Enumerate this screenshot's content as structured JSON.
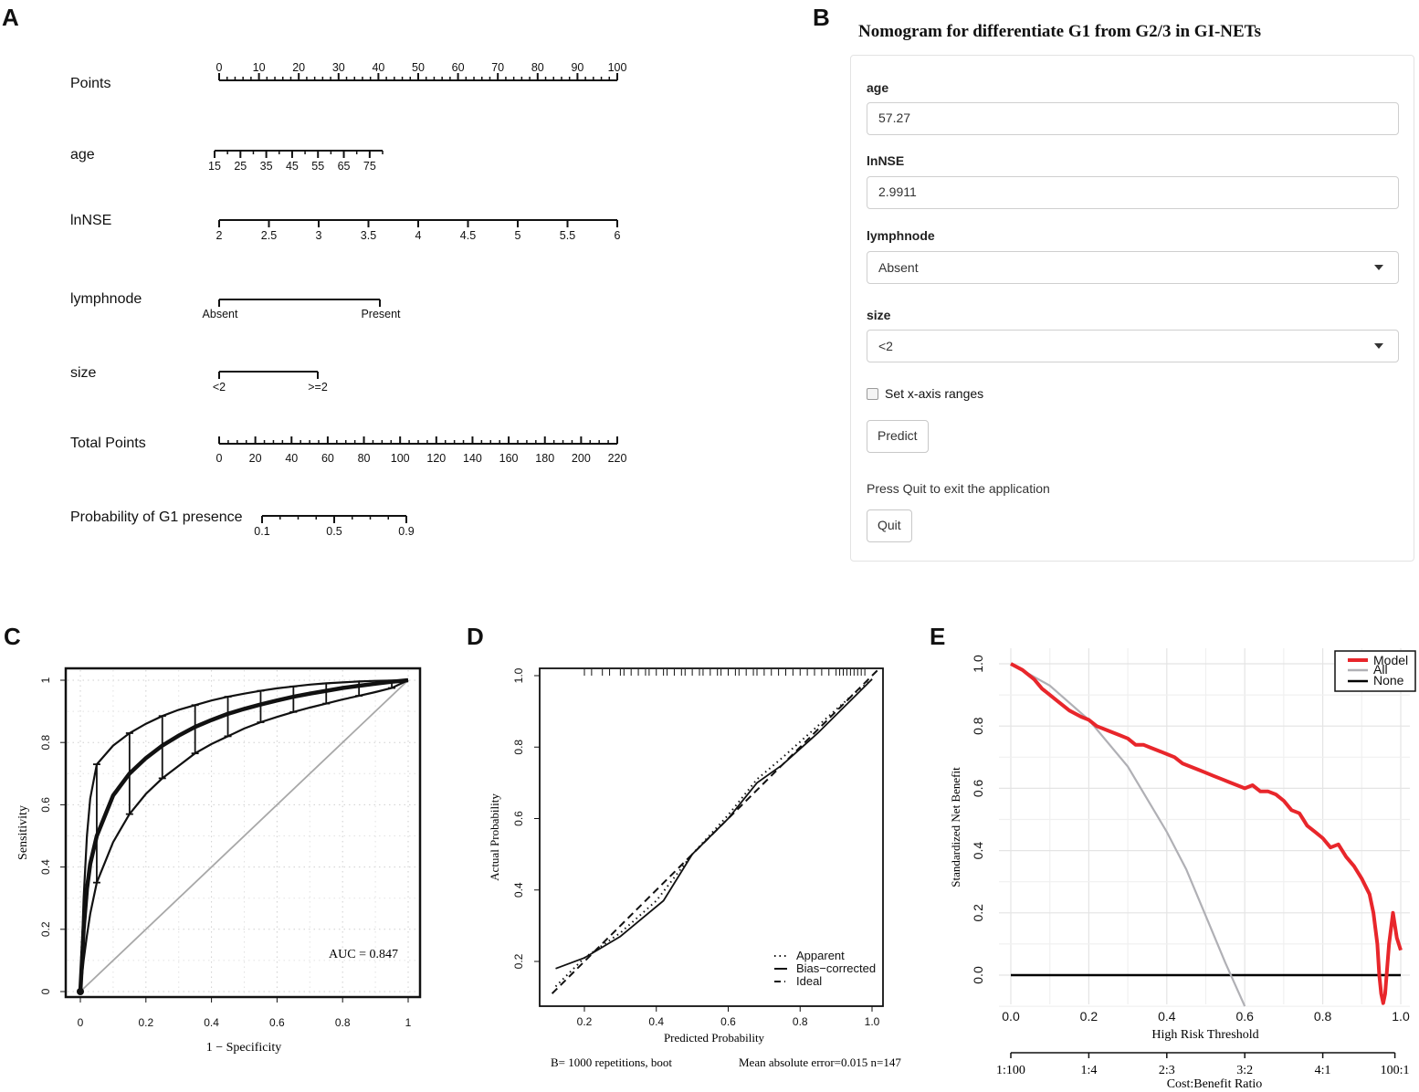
{
  "panels": {
    "A": "A",
    "B": "B",
    "C": "C",
    "D": "D",
    "E": "E"
  },
  "nomogram": {
    "rows": [
      {
        "label": "Points",
        "ticks": [
          "0",
          "10",
          "20",
          "30",
          "40",
          "50",
          "60",
          "70",
          "80",
          "90",
          "100"
        ]
      },
      {
        "label": "age",
        "ticks": [
          "15",
          "25",
          "35",
          "45",
          "55",
          "65",
          "75"
        ]
      },
      {
        "label": "lnNSE",
        "ticks": [
          "2",
          "2.5",
          "3",
          "3.5",
          "4",
          "4.5",
          "5",
          "5.5",
          "6"
        ]
      },
      {
        "label": "lymphnode",
        "ticks": [
          "Absent",
          "Present"
        ]
      },
      {
        "label": "size",
        "ticks": [
          "<2",
          ">=2"
        ]
      },
      {
        "label": "Total Points",
        "ticks": [
          "0",
          "20",
          "40",
          "60",
          "80",
          "100",
          "120",
          "140",
          "160",
          "180",
          "200",
          "220"
        ]
      },
      {
        "label": "Probability of G1 presence",
        "ticks": [
          "0.1",
          "0.5",
          "0.9"
        ]
      }
    ]
  },
  "app": {
    "title": "Nomogram for differentiate G1 from G2/3 in GI-NETs",
    "age_label": "age",
    "age_value": "57.27",
    "lnnse_label": "lnNSE",
    "lnnse_value": "2.9911",
    "lymph_label": "lymphnode",
    "lymph_value": "Absent",
    "size_label": "size",
    "size_value": "<2",
    "xaxis_checkbox": "Set x-axis ranges",
    "predict_button": "Predict",
    "quit_help": "Press Quit to exit the application",
    "quit_button": "Quit"
  },
  "chart_data": [
    {
      "id": "roc",
      "type": "line",
      "xlabel": "1 − Specificity",
      "ylabel": "Sensitivity",
      "xlim": [
        0,
        1
      ],
      "ylim": [
        0,
        1
      ],
      "xticks": [
        "0",
        "0.2",
        "0.4",
        "0.6",
        "0.8",
        "1"
      ],
      "yticks": [
        "0",
        "0.2",
        "0.4",
        "0.6",
        "0.8",
        "1"
      ],
      "annotation": "AUC =  0.847",
      "grid": true,
      "series": [
        {
          "name": "ROC",
          "x": [
            0,
            0.01,
            0.02,
            0.03,
            0.05,
            0.1,
            0.15,
            0.2,
            0.25,
            0.3,
            0.35,
            0.4,
            0.45,
            0.5,
            0.55,
            0.6,
            0.65,
            0.7,
            0.75,
            0.8,
            0.85,
            0.9,
            0.95,
            1.0
          ],
          "y": [
            0,
            0.2,
            0.33,
            0.41,
            0.5,
            0.63,
            0.7,
            0.75,
            0.79,
            0.822,
            0.85,
            0.872,
            0.892,
            0.908,
            0.922,
            0.935,
            0.947,
            0.957,
            0.966,
            0.975,
            0.982,
            0.989,
            0.995,
            1.0
          ],
          "upper": [
            0,
            0.3,
            0.5,
            0.62,
            0.73,
            0.79,
            0.83,
            0.86,
            0.885,
            0.905,
            0.92,
            0.935,
            0.947,
            0.957,
            0.966,
            0.974,
            0.98,
            0.986,
            0.99,
            0.993,
            0.996,
            0.998,
            0.999,
            1.0
          ],
          "lower": [
            0,
            0.1,
            0.18,
            0.25,
            0.35,
            0.48,
            0.57,
            0.635,
            0.685,
            0.725,
            0.765,
            0.795,
            0.82,
            0.845,
            0.865,
            0.882,
            0.898,
            0.912,
            0.925,
            0.938,
            0.95,
            0.962,
            0.975,
            1.0
          ]
        },
        {
          "name": "Reference",
          "x": [
            0,
            1
          ],
          "y": [
            0,
            1
          ]
        }
      ]
    },
    {
      "id": "calibration",
      "type": "line",
      "xlabel": "Predicted Probability",
      "ylabel": "Actual Probability",
      "xlim": [
        0.11,
        1.03
      ],
      "ylim": [
        0.11,
        1.04
      ],
      "xticks": [
        "0.2",
        "0.4",
        "0.6",
        "0.8",
        "1.0"
      ],
      "yticks": [
        "0.2",
        "0.4",
        "0.6",
        "0.8",
        "1.0"
      ],
      "legend": [
        "Apparent",
        "Bias−corrected",
        "Ideal"
      ],
      "footer_left": "B= 1000 repetitions, boot",
      "footer_right": "Mean absolute error=0.015 n=147",
      "series": [
        {
          "name": "Apparent",
          "x": [
            0.12,
            0.2,
            0.3,
            0.4,
            0.5,
            0.6,
            0.68,
            0.75,
            0.85,
            0.95,
            1.0
          ],
          "y": [
            0.13,
            0.21,
            0.28,
            0.37,
            0.5,
            0.61,
            0.71,
            0.77,
            0.86,
            0.95,
            0.99
          ]
        },
        {
          "name": "Bias−corrected",
          "x": [
            0.12,
            0.2,
            0.3,
            0.42,
            0.5,
            0.6,
            0.68,
            0.75,
            0.85,
            0.95,
            1.0
          ],
          "y": [
            0.18,
            0.21,
            0.27,
            0.37,
            0.5,
            0.6,
            0.7,
            0.75,
            0.84,
            0.94,
            0.99
          ]
        },
        {
          "name": "Ideal",
          "x": [
            0.11,
            1.02
          ],
          "y": [
            0.11,
            1.02
          ]
        }
      ],
      "rug": [
        0.2,
        0.22,
        0.25,
        0.27,
        0.3,
        0.31,
        0.33,
        0.35,
        0.37,
        0.38,
        0.4,
        0.42,
        0.43,
        0.45,
        0.47,
        0.48,
        0.5,
        0.52,
        0.53,
        0.55,
        0.57,
        0.58,
        0.6,
        0.62,
        0.63,
        0.65,
        0.67,
        0.68,
        0.7,
        0.72,
        0.74,
        0.76,
        0.78,
        0.8,
        0.82,
        0.84,
        0.86,
        0.88,
        0.9,
        0.91,
        0.92,
        0.93,
        0.94,
        0.95,
        0.96,
        0.97,
        0.98
      ]
    },
    {
      "id": "dca",
      "type": "line",
      "xlabel": "High Risk Threshold",
      "ylabel": "Standardized Net Benefit",
      "x2label": "Cost:Benefit Ratio",
      "xlim": [
        0,
        1
      ],
      "ylim": [
        -0.1,
        1.03
      ],
      "xticks": [
        "0.0",
        "0.2",
        "0.4",
        "0.6",
        "0.8",
        "1.0"
      ],
      "yticks": [
        "0.0",
        "0.2",
        "0.4",
        "0.6",
        "0.8",
        "1.0"
      ],
      "x2ticks": [
        "1:100",
        "1:4",
        "2:3",
        "3:2",
        "4:1",
        "100:1"
      ],
      "legend": [
        "Model",
        "All",
        "None"
      ],
      "series": [
        {
          "name": "Model",
          "color": "#e8262b",
          "x": [
            0,
            0.03,
            0.06,
            0.08,
            0.1,
            0.12,
            0.15,
            0.18,
            0.2,
            0.22,
            0.24,
            0.26,
            0.28,
            0.3,
            0.32,
            0.34,
            0.36,
            0.38,
            0.4,
            0.42,
            0.44,
            0.46,
            0.48,
            0.5,
            0.52,
            0.54,
            0.56,
            0.58,
            0.6,
            0.62,
            0.64,
            0.66,
            0.68,
            0.7,
            0.72,
            0.74,
            0.75,
            0.76,
            0.78,
            0.8,
            0.82,
            0.84,
            0.86,
            0.88,
            0.9,
            0.92,
            0.93,
            0.94,
            0.945,
            0.95,
            0.955,
            0.96,
            0.97,
            0.98,
            0.99,
            1.0
          ],
          "y": [
            1.0,
            0.98,
            0.95,
            0.92,
            0.9,
            0.88,
            0.85,
            0.83,
            0.82,
            0.8,
            0.79,
            0.78,
            0.77,
            0.76,
            0.74,
            0.74,
            0.73,
            0.72,
            0.71,
            0.7,
            0.68,
            0.67,
            0.66,
            0.65,
            0.64,
            0.63,
            0.62,
            0.61,
            0.6,
            0.61,
            0.59,
            0.59,
            0.58,
            0.56,
            0.53,
            0.52,
            0.5,
            0.48,
            0.46,
            0.44,
            0.41,
            0.42,
            0.38,
            0.35,
            0.31,
            0.26,
            0.2,
            0.1,
            0.0,
            -0.06,
            -0.09,
            -0.06,
            0.1,
            0.2,
            0.12,
            0.08
          ]
        },
        {
          "name": "All",
          "color": "#b0b0b5",
          "x": [
            0,
            0.1,
            0.2,
            0.3,
            0.4,
            0.45,
            0.5,
            0.55,
            0.6
          ],
          "y": [
            1.0,
            0.93,
            0.82,
            0.67,
            0.46,
            0.34,
            0.19,
            0.04,
            -0.1
          ]
        },
        {
          "name": "None",
          "color": "#000000",
          "x": [
            0,
            1
          ],
          "y": [
            0,
            0
          ]
        }
      ]
    }
  ]
}
